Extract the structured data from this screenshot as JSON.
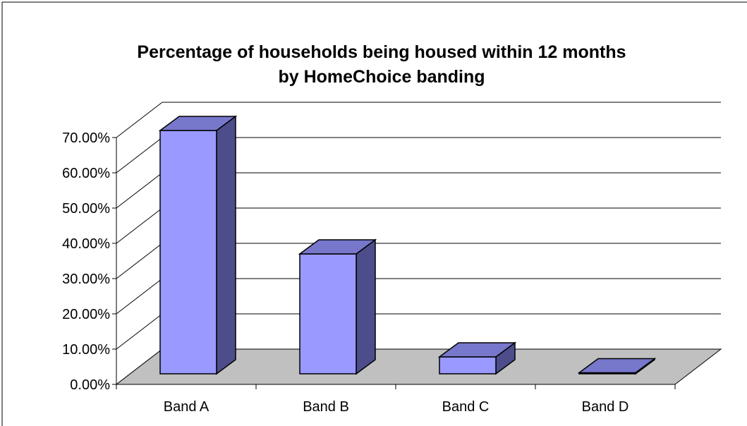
{
  "chart_data": {
    "type": "bar",
    "title": "Percentage of households being housed within 12 months by HomeChoice banding",
    "title_lines": [
      "Percentage of households being housed within 12 months",
      "by HomeChoice banding"
    ],
    "categories": [
      "Band A",
      "Band B",
      "Band C",
      "Band D"
    ],
    "values": [
      0.69,
      0.34,
      0.048,
      0.003
    ],
    "ylim": [
      0,
      0.7
    ],
    "yticks": [
      0,
      0.1,
      0.2,
      0.3,
      0.4,
      0.5,
      0.6,
      0.7
    ],
    "ytick_labels": [
      "0.00%",
      "10.00%",
      "20.00%",
      "30.00%",
      "40.00%",
      "50.00%",
      "60.00%",
      "70.00%"
    ],
    "xlabel": "",
    "ylabel": "",
    "grid": true,
    "legend": "none",
    "style": "3d-column",
    "colors": {
      "bar_front": "#9999FF",
      "bar_top": "#7777CC",
      "bar_side": "#4D4D8C",
      "floor": "#C0C0C0",
      "gridline": "#000000",
      "background": "#FFFFFF"
    }
  }
}
